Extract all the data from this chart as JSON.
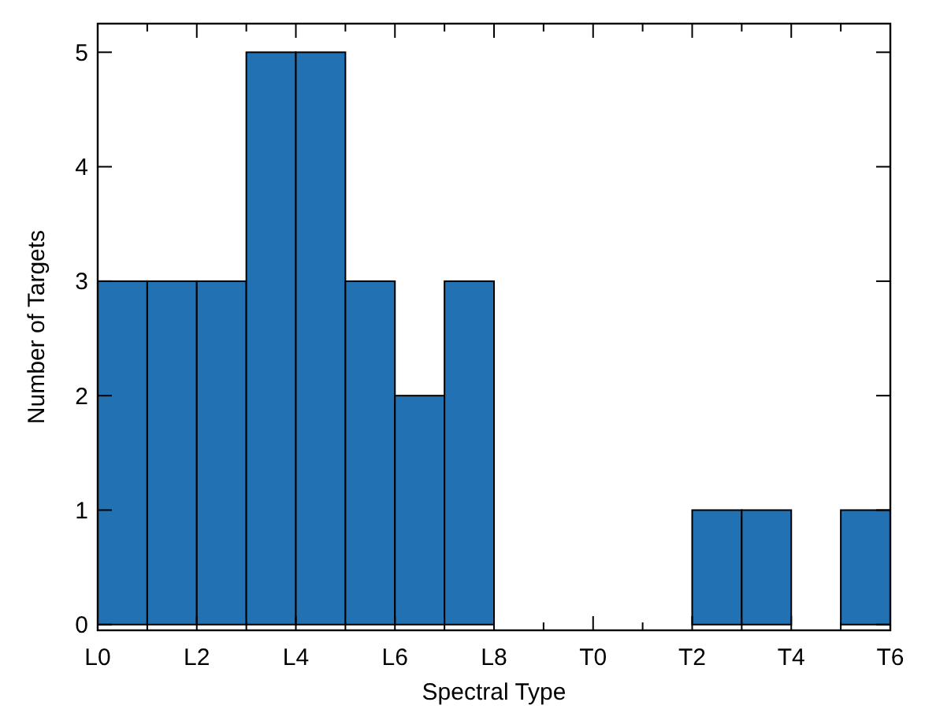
{
  "chart_data": {
    "type": "bar",
    "xlabel": "Spectral Type",
    "ylabel": "Number of Targets",
    "categories": [
      "L0",
      null,
      "L2",
      null,
      "L4",
      null,
      "L6",
      null,
      "L8",
      null,
      "T0",
      null,
      "T2",
      null,
      "T4",
      null,
      "T6"
    ],
    "values": [
      3,
      3,
      3,
      5,
      5,
      3,
      2,
      3,
      0,
      0,
      0,
      0,
      1,
      1,
      0,
      1,
      null
    ],
    "color": "#2271b3",
    "ylim": [
      -0.05,
      5.25
    ],
    "yticks": [
      0,
      1,
      2,
      3,
      4,
      5
    ]
  }
}
